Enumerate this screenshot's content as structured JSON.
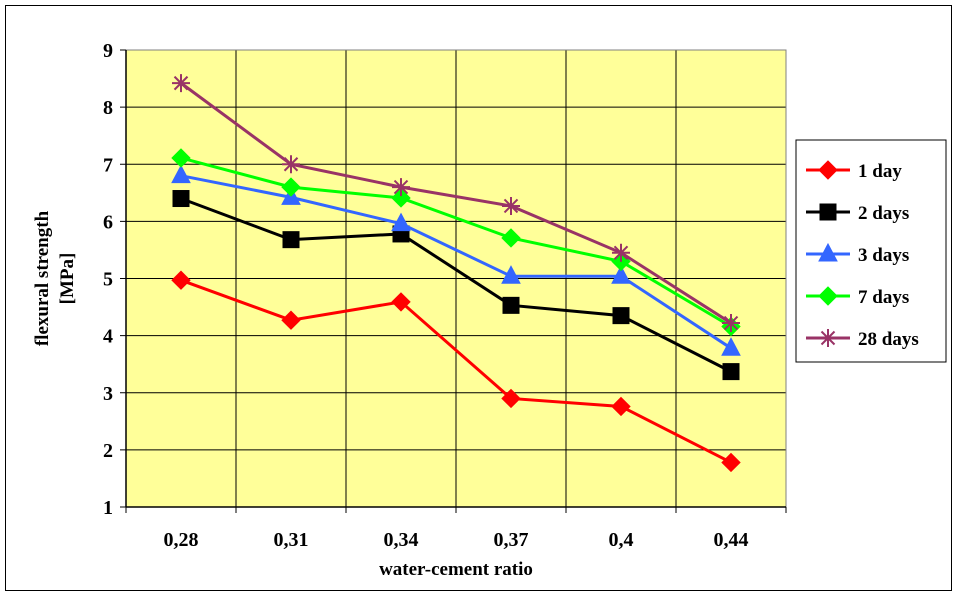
{
  "chart_data": {
    "type": "line",
    "categories": [
      "0,28",
      "0,31",
      "0,34",
      "0,37",
      "0,4",
      "0,44"
    ],
    "xlabel": "water-cement ratio",
    "ylabel_lines": [
      "flexural strength",
      "[MPa]"
    ],
    "ylim": [
      1,
      9
    ],
    "yticks": [
      "1",
      "2",
      "3",
      "4",
      "5",
      "6",
      "7",
      "8",
      "9"
    ],
    "grid": true,
    "legend_position": "right",
    "plot_background": "#ffff99",
    "series": [
      {
        "name": "1 day",
        "color": "#ff0000",
        "marker": "diamond-icon",
        "values": [
          4.97,
          4.27,
          4.59,
          2.9,
          2.76,
          1.78
        ]
      },
      {
        "name": "2 days",
        "color": "#000000",
        "marker": "square-icon",
        "values": [
          6.4,
          5.68,
          5.78,
          4.53,
          4.35,
          3.37
        ]
      },
      {
        "name": "3 days",
        "color": "#3366ff",
        "marker": "triangle-icon",
        "values": [
          6.8,
          6.42,
          5.96,
          5.04,
          5.04,
          3.78
        ]
      },
      {
        "name": "7 days",
        "color": "#00ff00",
        "marker": "diamond-icon",
        "values": [
          7.11,
          6.6,
          6.41,
          5.71,
          5.3,
          4.16
        ]
      },
      {
        "name": "28 days",
        "color": "#993366",
        "marker": "asterisk-icon",
        "values": [
          8.42,
          7.0,
          6.6,
          6.27,
          5.45,
          4.22
        ]
      }
    ]
  }
}
